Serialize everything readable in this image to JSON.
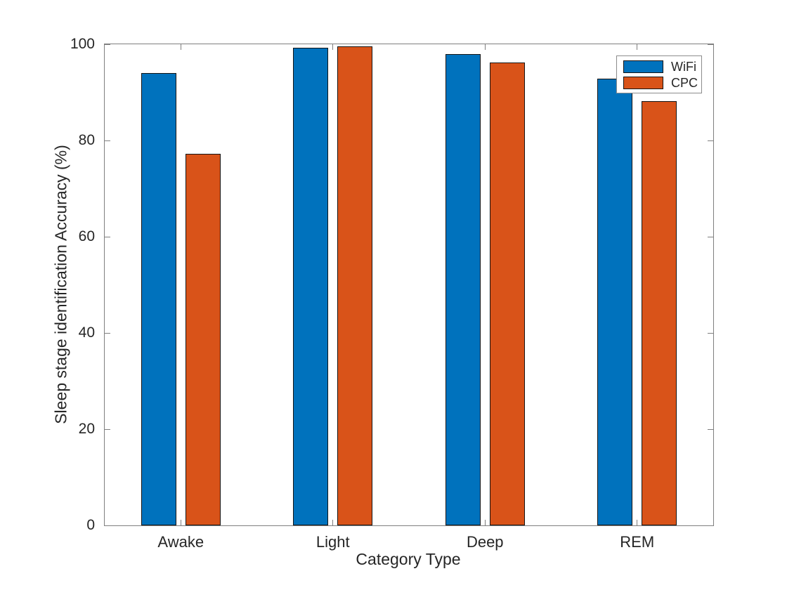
{
  "chart_data": {
    "type": "bar",
    "title": "",
    "xlabel": "Category Type",
    "ylabel": "Sleep stage identification Accuracy (%)",
    "categories": [
      "Awake",
      "Light",
      "Deep",
      "REM"
    ],
    "series": [
      {
        "name": "WiFi",
        "color": "#0072BD",
        "values": [
          94.0,
          99.3,
          98.0,
          92.8
        ]
      },
      {
        "name": "CPC",
        "color": "#D95319",
        "values": [
          77.3,
          99.5,
          96.2,
          88.2
        ]
      }
    ],
    "ylim": [
      0,
      100
    ],
    "yticks": [
      0,
      20,
      40,
      60,
      80,
      100
    ],
    "grid": false,
    "legend_position": "northeast",
    "bar_edge_color": "#141414",
    "axis_box": true
  }
}
